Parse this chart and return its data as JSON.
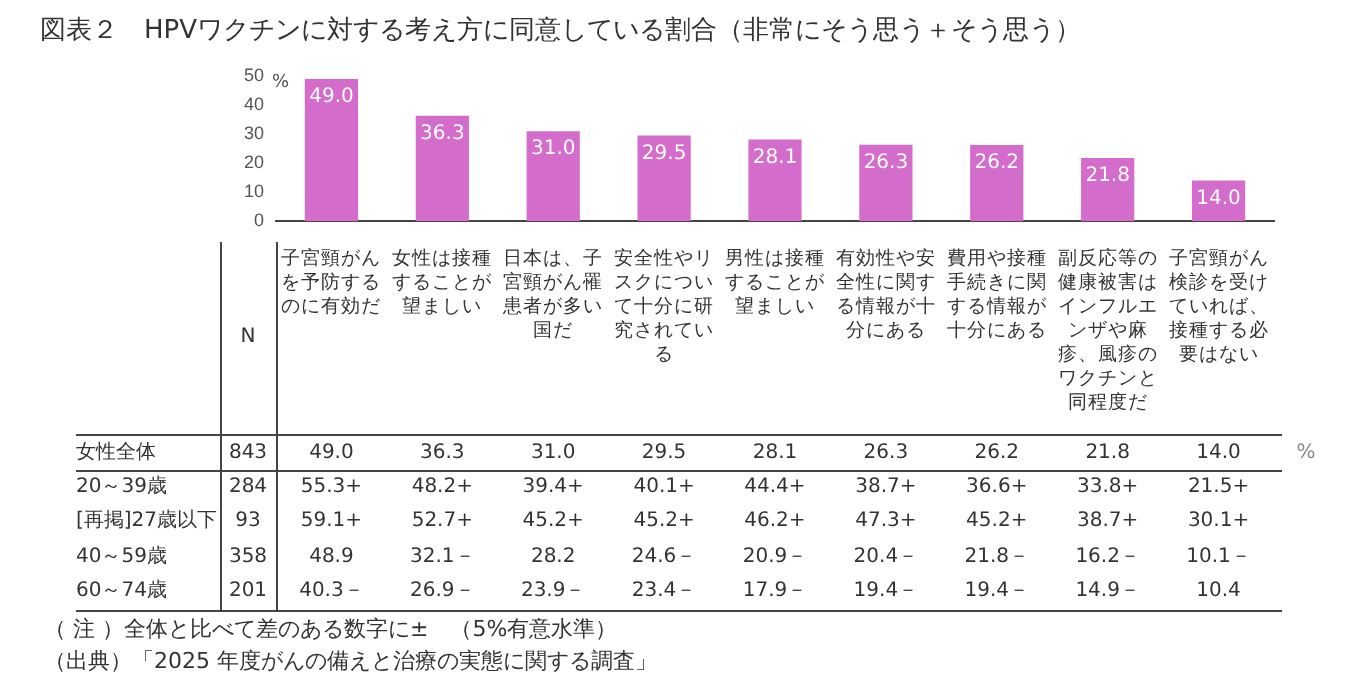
{
  "chart_data": {
    "type": "bar",
    "title": "図表２　HPVワクチンに対する考え方に同意している割合（非常にそう思う＋そう思う）",
    "categories": [
      "子宮頸がんを予防するのに有効だ",
      "女性は接種することが望ましい",
      "日本は、子宮頸がん罹患者が多い国だ",
      "安全性やリスクについて十分に研究されている",
      "男性は接種することが望ましい",
      "有効性や安全性に関する情報が十分にある",
      "費用や接種手続きに関する情報が十分にある",
      "副反応等の健康被害はインフルエンザや麻疹、風疹のワクチンと同程度だ",
      "子宮頸がん検診を受けていれば、接種する必要はない"
    ],
    "values": [
      49.0,
      36.3,
      31.0,
      29.5,
      28.1,
      26.3,
      26.2,
      21.8,
      14.0
    ],
    "value_labels": [
      "49.0",
      "36.3",
      "31.0",
      "29.5",
      "28.1",
      "26.3",
      "26.2",
      "21.8",
      "14.0"
    ],
    "color": "#d46ccb",
    "ylim": [
      0,
      50
    ],
    "yticks": [
      0,
      10,
      20,
      30,
      40,
      50
    ],
    "annotations": [
      "%",
      "N",
      "女性全体",
      "843",
      "%",
      "20～39歳",
      "284",
      "55.3+",
      "48.2+",
      "39.4+",
      "40.1+",
      "44.4+",
      "38.7+",
      "36.6+",
      "33.8+",
      "21.5+",
      "[再掲]27歳以下",
      "93",
      "59.1+",
      "52.7+",
      "45.2+",
      "45.2+",
      "46.2+",
      "47.3+",
      "45.2+",
      "38.7+",
      "30.1+",
      "40～59歳",
      "358",
      "48.9",
      "32.1－",
      "28.2",
      "24.6－",
      "20.9－",
      "20.4－",
      "21.8－",
      "16.2－",
      "10.1－",
      "60～74歳",
      "201",
      "40.3－",
      "26.9－",
      "23.9－",
      "23.4－",
      "17.9－",
      "19.4－",
      "19.4－",
      "14.9－",
      "10.4",
      "（ 注 ）全体と比べて差のある数字に±　（5%有意水準）",
      "（出典）「2025 年度がんの備えと治療の実態に関する調査」"
    ]
  }
}
